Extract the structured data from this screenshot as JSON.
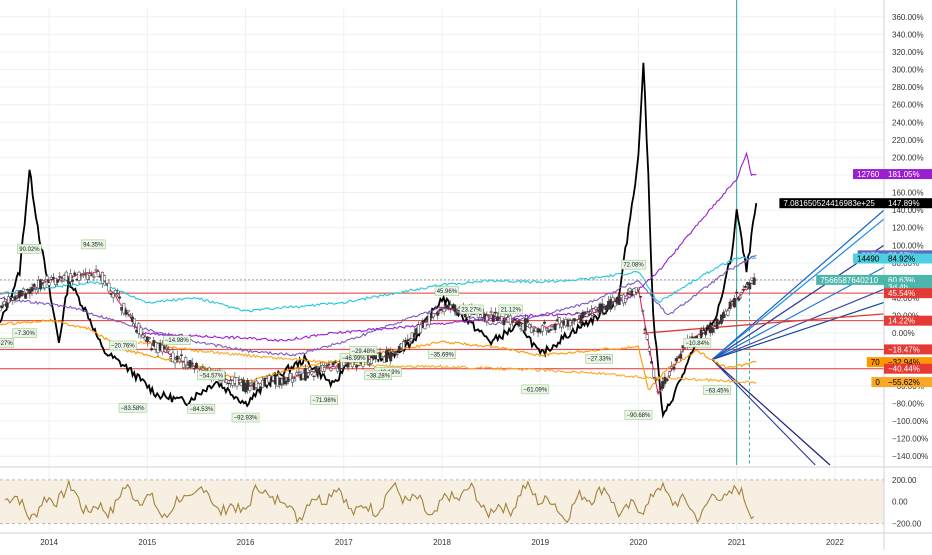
{
  "chart_data": {
    "type": "line",
    "title": "",
    "price_axis": {
      "unit": "%",
      "ylim": [
        -150,
        370
      ],
      "ticks": [
        "360.00%",
        "340.00%",
        "320.00%",
        "300.00%",
        "280.00%",
        "260.00%",
        "240.00%",
        "220.00%",
        "200.00%",
        "180.00%",
        "160.00%",
        "140.00%",
        "120.00%",
        "100.00%",
        "80.00%",
        "60.00%",
        "40.00%",
        "20.00%",
        "0.00%",
        "−20.00%",
        "−40.00%",
        "−60.00%",
        "−80.00%",
        "−100.00%",
        "−120.00%",
        "−140.00%"
      ],
      "tick_values": [
        360,
        340,
        320,
        300,
        280,
        260,
        240,
        220,
        200,
        180,
        160,
        140,
        120,
        100,
        80,
        60,
        40,
        20,
        0,
        -20,
        -40,
        -60,
        -80,
        -100,
        -120,
        -140
      ]
    },
    "time_axis": {
      "labels": [
        "2014",
        "2015",
        "2016",
        "2017",
        "2018",
        "2019",
        "2020",
        "2021",
        "2022"
      ],
      "years": [
        2014,
        2015,
        2016,
        2017,
        2018,
        2019,
        2020,
        2021,
        2022
      ],
      "xlim": [
        2013.5,
        2022.5
      ]
    },
    "oscillator": {
      "ylim": [
        -260,
        290
      ],
      "ticks": [
        "200.00",
        "0.00",
        "−200.00"
      ],
      "tick_values": [
        200,
        0,
        -200
      ]
    },
    "series": [
      {
        "color": "#000000",
        "x": [
          2013.5,
          2013.7,
          2013.8,
          2013.9,
          2014.1,
          2014.2,
          2014.4,
          2014.55,
          2014.8,
          2015.1,
          2015.4,
          2015.7,
          2016.0,
          2016.3,
          2016.6,
          2016.9,
          2017.1,
          2017.4,
          2017.7,
          2018.0,
          2018.2,
          2018.5,
          2018.8,
          2019.0,
          2019.3,
          2019.6,
          2019.8,
          2020.0,
          2020.05,
          2020.1,
          2020.15,
          2020.25,
          2020.4,
          2020.6,
          2020.8,
          2020.95,
          2021.0,
          2021.1,
          2021.2
        ],
        "y": [
          10,
          70,
          185,
          110,
          -10,
          60,
          20,
          -20,
          -40,
          -70,
          -78,
          -55,
          -80,
          -50,
          -30,
          -60,
          -20,
          -30,
          -10,
          40,
          20,
          -10,
          10,
          -25,
          0,
          20,
          40,
          200,
          310,
          180,
          20,
          -97,
          -60,
          -10,
          20,
          90,
          140,
          70,
          148
        ]
      },
      {
        "color": "#9B1FD0",
        "x": [
          2014.9,
          2015.4,
          2015.9,
          2016.4,
          2016.9,
          2017.4,
          2017.9,
          2018.4,
          2018.9,
          2019.4,
          2019.9,
          2020.2,
          2020.5,
          2020.8,
          2021.0,
          2021.1,
          2021.15,
          2021.2
        ],
        "y": [
          0,
          -3,
          -5,
          -8,
          0,
          5,
          10,
          15,
          20,
          22,
          40,
          70,
          110,
          150,
          175,
          205,
          180,
          181
        ]
      },
      {
        "color": "#26C6DA",
        "x": [
          2013.5,
          2014.0,
          2014.5,
          2015.0,
          2015.5,
          2016.0,
          2016.5,
          2017.0,
          2017.5,
          2018.0,
          2018.5,
          2019.0,
          2019.5,
          2020.0,
          2020.2,
          2020.5,
          2020.8,
          2021.0,
          2021.2
        ],
        "y": [
          45,
          52,
          58,
          35,
          40,
          25,
          30,
          35,
          45,
          55,
          60,
          58,
          62,
          70,
          35,
          55,
          75,
          85,
          85
        ]
      },
      {
        "color": "#7E57C2",
        "x": [
          2013.5,
          2014.2,
          2014.8,
          2015.5,
          2016.0,
          2016.5,
          2017.0,
          2017.5,
          2018.0,
          2018.5,
          2019.0,
          2019.5,
          2020.0,
          2020.3,
          2020.6,
          2020.9,
          2021.2
        ],
        "y": [
          40,
          30,
          10,
          -10,
          -20,
          -25,
          -10,
          10,
          30,
          10,
          20,
          35,
          60,
          20,
          45,
          70,
          89
        ]
      },
      {
        "color": "#FF9800",
        "x": [
          2013.5,
          2014.0,
          2014.4,
          2014.8,
          2015.2,
          2015.6,
          2016.0,
          2016.5,
          2017.0,
          2017.5,
          2018.0,
          2018.5,
          2019.0,
          2019.5,
          2020.0,
          2020.1,
          2020.3,
          2020.6,
          2020.9,
          2021.2
        ],
        "y": [
          10,
          15,
          5,
          -20,
          -30,
          -40,
          -55,
          -40,
          -30,
          -20,
          -10,
          -15,
          -25,
          -20,
          -15,
          -65,
          -40,
          -20,
          -40,
          -33
        ]
      },
      {
        "color": "#E91E63",
        "x": [
          2013.5,
          2014.0,
          2014.5,
          2015.0,
          2015.5,
          2016.0,
          2016.5,
          2017.0,
          2017.5,
          2018.0,
          2018.5,
          2019.0,
          2019.5,
          2020.0,
          2020.2,
          2020.5,
          2020.8,
          2021.0,
          2021.2
        ],
        "y": [
          30,
          60,
          70,
          -10,
          -40,
          -60,
          -50,
          -35,
          -25,
          30,
          20,
          5,
          20,
          50,
          -70,
          -10,
          10,
          40,
          61
        ]
      },
      {
        "color": "#F9A825",
        "x": [
          2014.9,
          2015.5,
          2016.0,
          2016.5,
          2017.0,
          2017.5,
          2018.0,
          2018.5,
          2019.0,
          2019.5,
          2020.0,
          2020.5,
          2021.0,
          2021.2
        ],
        "y": [
          -10,
          -20,
          -25,
          -30,
          -35,
          -38,
          -38,
          -40,
          -42,
          -45,
          -50,
          -52,
          -55,
          -56
        ]
      }
    ],
    "horizontal_levels": [
      {
        "color": "#E53935",
        "y": 45.54
      },
      {
        "color": "#E53935",
        "y": 14.22
      },
      {
        "color": "#E53935",
        "y": -18.47
      },
      {
        "color": "#E53935",
        "y": -40.44
      },
      {
        "color": "#9E9E9E",
        "y": 60.63
      }
    ],
    "price_badges": [
      {
        "text": "12760   181.05%",
        "bg": "#9B1FD0",
        "fg": "#ffffff",
        "y": 181.05
      },
      {
        "text": "7.081650524416983e+25   147.89%",
        "bg": "#000000",
        "fg": "#ffffff",
        "y": 147.89
      },
      {
        "text": "3870   88.57%",
        "bg": "#5C6BC0",
        "fg": "#ffffff",
        "y": 88.57
      },
      {
        "text": "14490   84.92%",
        "bg": "#4DD0E1",
        "fg": "#000000",
        "y": 84.92
      },
      {
        "text": "7566587640210   60.63%",
        "bg": "#4DB6AC",
        "fg": "#ffffff",
        "y": 60.63
      },
      {
        "text": "3d 4h",
        "bg": "#4DB6AC",
        "fg": "#ffffff",
        "y": 52.5
      },
      {
        "text": "45.54%",
        "bg": "#E53935",
        "fg": "#ffffff",
        "y": 45.54
      },
      {
        "text": "14.22%",
        "bg": "#E53935",
        "fg": "#ffffff",
        "y": 14.22
      },
      {
        "text": "−18.47%",
        "bg": "#E53935",
        "fg": "#ffffff",
        "y": -18.47
      },
      {
        "text": "70   −32.94%",
        "bg": "#FF9800",
        "fg": "#000000",
        "y": -32.94
      },
      {
        "text": "−40.44%",
        "bg": "#E53935",
        "fg": "#ffffff",
        "y": -40.44
      },
      {
        "text": "0   −55.62%",
        "bg": "#F9A825",
        "fg": "#000000",
        "y": -55.62
      }
    ],
    "annotations": [
      {
        "text": "90.02%",
        "x": 2013.8,
        "y": 96
      },
      {
        "text": "94.35%",
        "x": 2014.45,
        "y": 101
      },
      {
        "text": "−20.76%",
        "x": 2014.75,
        "y": -14
      },
      {
        "text": "−14.98%",
        "x": 2015.3,
        "y": -8
      },
      {
        "text": "−54.57%",
        "x": 2015.65,
        "y": -48
      },
      {
        "text": "−83.58%",
        "x": 2014.85,
        "y": -85
      },
      {
        "text": "−84.53%",
        "x": 2015.55,
        "y": -86
      },
      {
        "text": "−92.93%",
        "x": 2016.0,
        "y": -96
      },
      {
        "text": "−71.98%",
        "x": 2016.8,
        "y": -76
      },
      {
        "text": "−46.99%",
        "x": 2017.1,
        "y": -28
      },
      {
        "text": "−29.48%",
        "x": 2017.2,
        "y": -20
      },
      {
        "text": "−40.19%",
        "x": 2017.45,
        "y": -44
      },
      {
        "text": "−38.28%",
        "x": 2017.35,
        "y": -48
      },
      {
        "text": "45.96%",
        "x": 2018.05,
        "y": 48
      },
      {
        "text": "23.27%",
        "x": 2018.3,
        "y": 27
      },
      {
        "text": "21.12%",
        "x": 2018.7,
        "y": 27
      },
      {
        "text": "−35.69%",
        "x": 2018.0,
        "y": -24
      },
      {
        "text": "−61.09%",
        "x": 2018.95,
        "y": -64
      },
      {
        "text": "−27.33%",
        "x": 2019.6,
        "y": -29
      },
      {
        "text": "72.08%",
        "x": 2019.95,
        "y": 78
      },
      {
        "text": "−90.68%",
        "x": 2020.0,
        "y": -93
      },
      {
        "text": "−10.84%",
        "x": 2020.6,
        "y": -11
      },
      {
        "text": "−63.45%",
        "x": 2020.8,
        "y": -65
      },
      {
        "text": "−27%",
        "x": 2013.55,
        "y": -11
      },
      {
        "text": "−7.30%",
        "x": 2013.75,
        "y": 0
      }
    ]
  }
}
